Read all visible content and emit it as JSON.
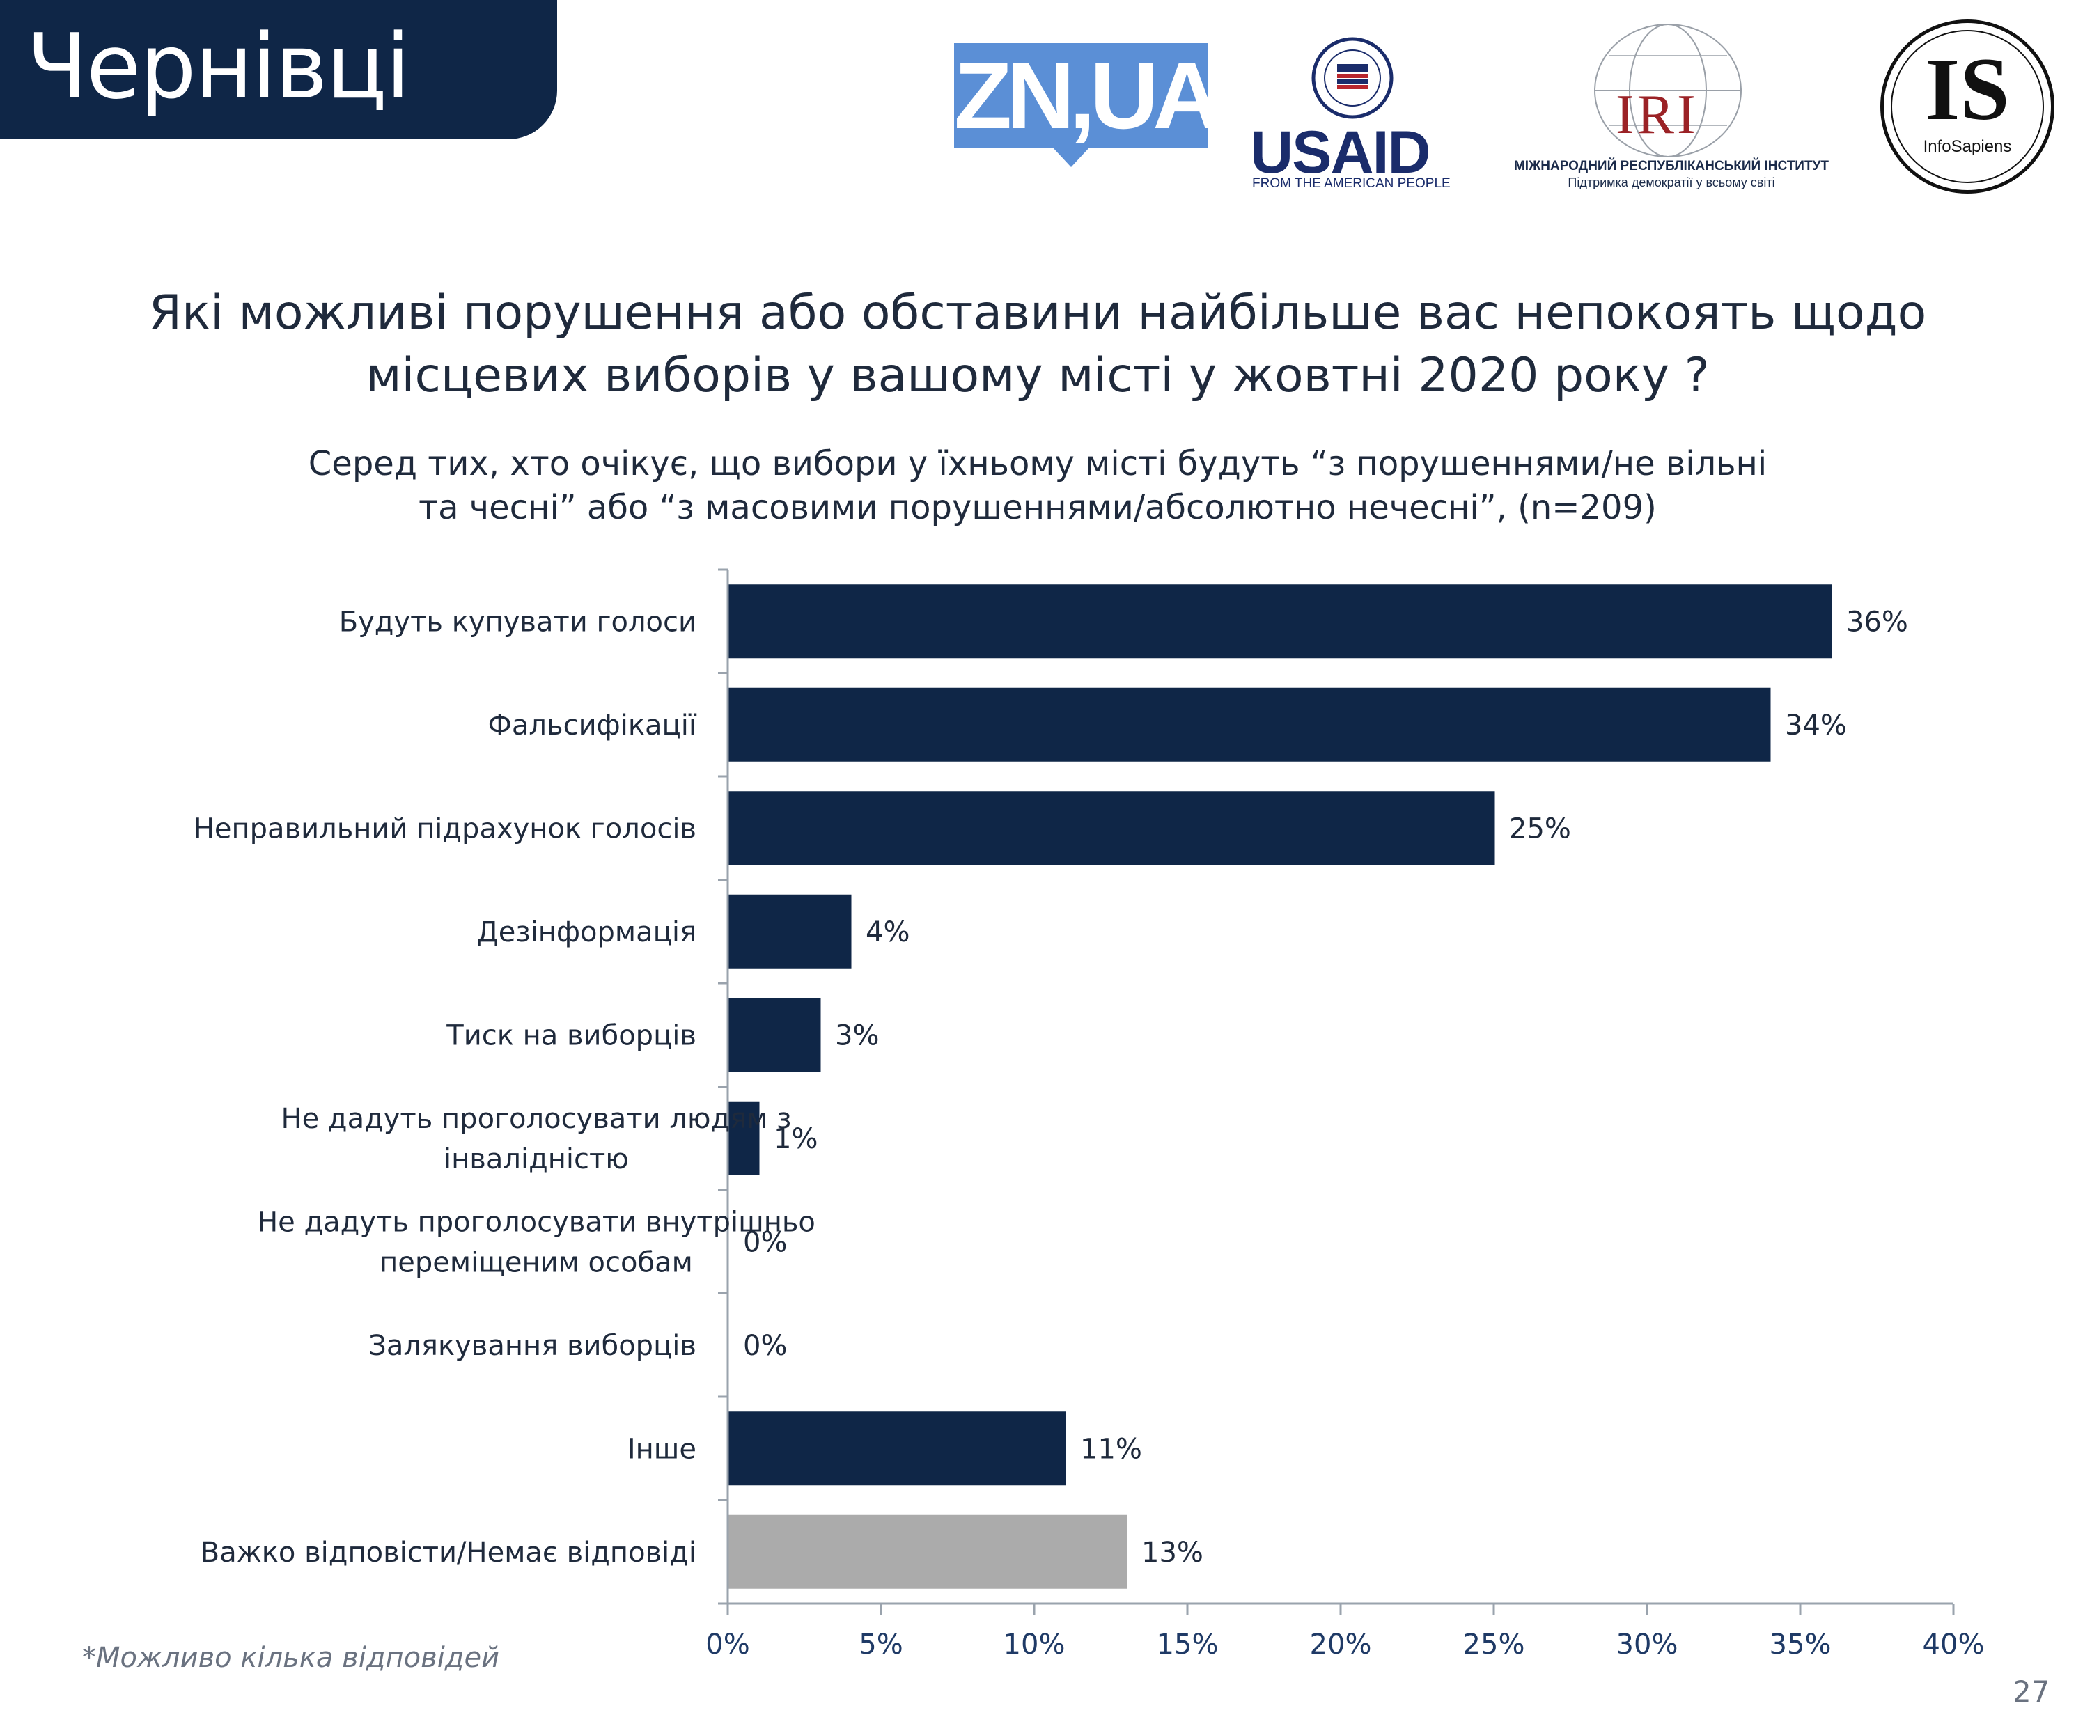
{
  "header": {
    "city": "Чернівці",
    "zn_logo": "ZN,UA",
    "usaid_logo": "USAID",
    "usaid_tagline": "FROM THE AMERICAN PEOPLE",
    "iri_logo": "IRI",
    "iri_name": "МІЖНАРОДНИЙ РЕСПУБЛІКАНСЬКИЙ ІНСТИТУТ",
    "iri_tagline": "Підтримка демократії у всьому світі",
    "is_logo": "IS",
    "is_name": "InfoSapiens"
  },
  "title_lines": [
    "Які можливі порушення або обставини найбільше вас непокоять щодо",
    "місцевих виборів у вашому місті у жовтні 2020 року ?"
  ],
  "subtitle_lines": [
    "Серед тих, хто очікує, що вибори у їхньому місті будуть “з порушеннями/не вільні",
    "та чесні” або “з масовими порушеннями/абсолютно нечесні”, (n=209)"
  ],
  "colors": {
    "bar_primary": "#0f2647",
    "bar_secondary": "#ababab",
    "axis": "#9aa3ad"
  },
  "chart_data": {
    "type": "bar",
    "orientation": "horizontal",
    "categories": [
      [
        "Будуть купувати голоси"
      ],
      [
        "Фальсифікації"
      ],
      [
        "Неправильний підрахунок голосів"
      ],
      [
        "Дезінформація"
      ],
      [
        "Тиск на виборців"
      ],
      [
        "Не дадуть проголосувати людям з",
        "інвалідністю"
      ],
      [
        "Не дадуть проголосувати внутрішньо",
        "переміщеним особам"
      ],
      [
        "Залякування виборців"
      ],
      [
        "Інше"
      ],
      [
        "Важко відповісти/Немає відповіді"
      ]
    ],
    "values": [
      36,
      34,
      25,
      4,
      3,
      1,
      0,
      0,
      11,
      13
    ],
    "value_labels": [
      "36%",
      "34%",
      "25%",
      "4%",
      "3%",
      "1%",
      "0%",
      "0%",
      "11%",
      "13%"
    ],
    "highlight_last": true,
    "xlim": [
      0,
      40
    ],
    "x_ticks": [
      0,
      5,
      10,
      15,
      20,
      25,
      30,
      35,
      40
    ],
    "x_tick_labels": [
      "0%",
      "5%",
      "10%",
      "15%",
      "20%",
      "25%",
      "30%",
      "35%",
      "40%"
    ],
    "xlabel": "",
    "ylabel": ""
  },
  "footnote": "*Можливо кілька відповідей",
  "page_number": "27"
}
